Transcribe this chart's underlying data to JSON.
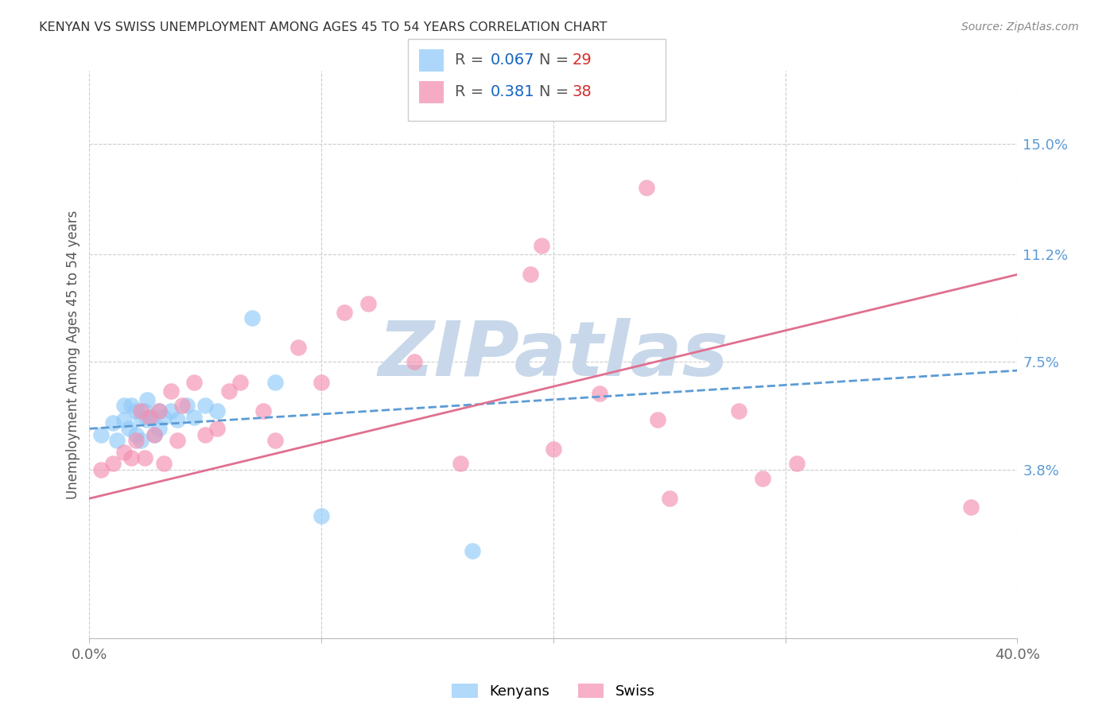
{
  "title": "KENYAN VS SWISS UNEMPLOYMENT AMONG AGES 45 TO 54 YEARS CORRELATION CHART",
  "source": "Source: ZipAtlas.com",
  "ylabel": "Unemployment Among Ages 45 to 54 years",
  "xlim": [
    0.0,
    0.4
  ],
  "ylim": [
    -0.02,
    0.175
  ],
  "ytick_vals": [
    0.038,
    0.075,
    0.112,
    0.15
  ],
  "ytick_labels": [
    "3.8%",
    "7.5%",
    "11.2%",
    "15.0%"
  ],
  "xtick_vals": [
    0.0,
    0.1,
    0.2,
    0.3,
    0.4
  ],
  "xtick_labels": [
    "0.0%",
    "",
    "",
    "",
    "40.0%"
  ],
  "background_color": "#FFFFFF",
  "grid_color": "#CCCCCC",
  "kenyan_color": "#90CAF9",
  "swiss_color": "#F48FB1",
  "kenyan_line_color": "#5B9BD5",
  "swiss_line_color": "#E07090",
  "kenyan_x": [
    0.005,
    0.01,
    0.012,
    0.015,
    0.015,
    0.017,
    0.018,
    0.02,
    0.02,
    0.022,
    0.022,
    0.024,
    0.025,
    0.025,
    0.027,
    0.028,
    0.03,
    0.03,
    0.032,
    0.035,
    0.038,
    0.042,
    0.045,
    0.05,
    0.055,
    0.07,
    0.08,
    0.1,
    0.165
  ],
  "kenyan_y": [
    0.05,
    0.054,
    0.048,
    0.06,
    0.055,
    0.052,
    0.06,
    0.058,
    0.05,
    0.056,
    0.048,
    0.058,
    0.062,
    0.055,
    0.056,
    0.05,
    0.058,
    0.052,
    0.056,
    0.058,
    0.055,
    0.06,
    0.056,
    0.06,
    0.058,
    0.09,
    0.068,
    0.022,
    0.01
  ],
  "swiss_x": [
    0.005,
    0.01,
    0.015,
    0.018,
    0.02,
    0.022,
    0.024,
    0.026,
    0.028,
    0.03,
    0.032,
    0.035,
    0.038,
    0.04,
    0.045,
    0.05,
    0.055,
    0.06,
    0.065,
    0.075,
    0.08,
    0.09,
    0.1,
    0.11,
    0.12,
    0.14,
    0.16,
    0.2,
    0.22,
    0.245,
    0.25,
    0.28,
    0.29,
    0.305,
    0.38,
    0.19,
    0.195,
    0.24
  ],
  "swiss_y": [
    0.038,
    0.04,
    0.044,
    0.042,
    0.048,
    0.058,
    0.042,
    0.056,
    0.05,
    0.058,
    0.04,
    0.065,
    0.048,
    0.06,
    0.068,
    0.05,
    0.052,
    0.065,
    0.068,
    0.058,
    0.048,
    0.08,
    0.068,
    0.092,
    0.095,
    0.075,
    0.04,
    0.045,
    0.064,
    0.055,
    0.028,
    0.058,
    0.035,
    0.04,
    0.025,
    0.105,
    0.115,
    0.135
  ],
  "kenyan_line_x": [
    0.0,
    0.4
  ],
  "kenyan_line_y": [
    0.052,
    0.072
  ],
  "swiss_line_x": [
    0.0,
    0.4
  ],
  "swiss_line_y": [
    0.028,
    0.105
  ],
  "legend_r1": "0.067",
  "legend_n1": "29",
  "legend_r2": "0.381",
  "legend_n2": "38",
  "legend_color_r": "#1565C0",
  "legend_color_n": "#D32F2F",
  "legend_color_text": "#555555",
  "watermark_text": "ZIPatlas",
  "watermark_color": "#C8D8EA",
  "bottom_legend_labels": [
    "Kenyans",
    "Swiss"
  ]
}
